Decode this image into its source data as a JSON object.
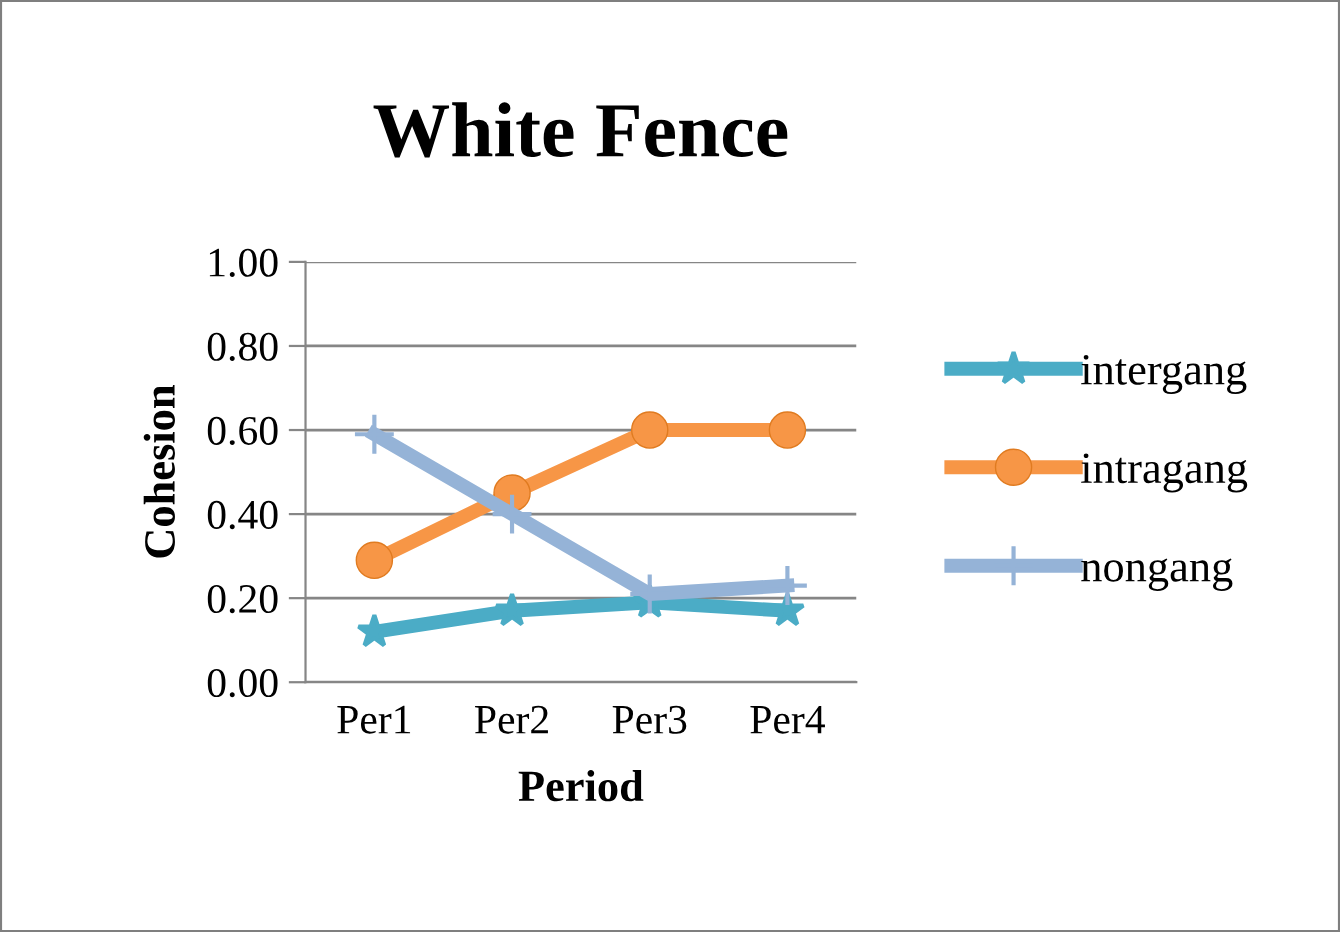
{
  "chart_data": {
    "type": "line",
    "title": "White Fence",
    "xlabel": "Period",
    "ylabel": "Cohesion",
    "categories": [
      "Per1",
      "Per2",
      "Per3",
      "Per4"
    ],
    "series": [
      {
        "name": "intergang",
        "color": "#4bacc6",
        "marker": "star",
        "values": [
          0.12,
          0.17,
          0.19,
          0.17
        ]
      },
      {
        "name": "intragang",
        "color": "#f79646",
        "marker": "circle",
        "values": [
          0.29,
          0.45,
          0.6,
          0.6
        ]
      },
      {
        "name": "nongang",
        "color": "#95b3d7",
        "marker": "cross",
        "values": [
          0.59,
          0.4,
          0.21,
          0.23
        ]
      }
    ],
    "ylim": [
      0,
      1
    ],
    "yticks": [
      {
        "value": 0,
        "label": "0.00"
      },
      {
        "value": 0.2,
        "label": "0.20"
      },
      {
        "value": 0.4,
        "label": "0.40"
      },
      {
        "value": 0.6,
        "label": "0.60"
      },
      {
        "value": 0.8,
        "label": "0.80"
      },
      {
        "value": 1,
        "label": "1.00"
      }
    ],
    "grid": "y",
    "legend": "right",
    "line_style": "solid"
  }
}
